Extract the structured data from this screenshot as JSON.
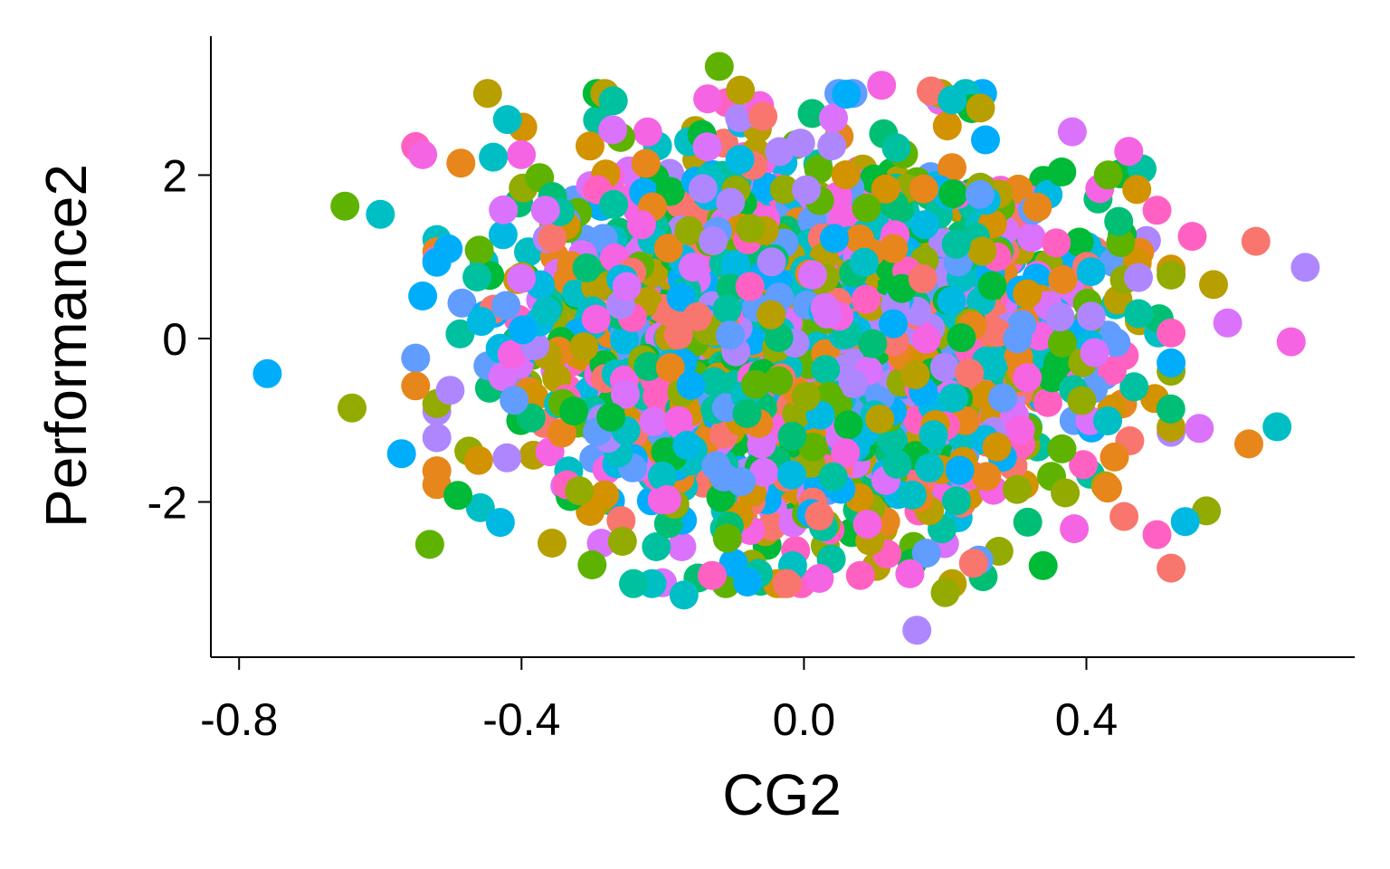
{
  "chart_data": {
    "type": "scatter",
    "title": "",
    "xlabel": "CG2",
    "ylabel": "Performance2",
    "xlim": [
      -0.84,
      0.78
    ],
    "ylim": [
      -3.9,
      3.7
    ],
    "xticks": [
      -0.8,
      -0.4,
      0.0,
      0.4
    ],
    "xtick_labels": [
      "-0.8",
      "-0.4",
      "0.0",
      "0.4"
    ],
    "yticks": [
      -2,
      0,
      2
    ],
    "ytick_labels": [
      "-2",
      "0",
      "2"
    ],
    "grid": false,
    "legend": "none",
    "palette": [
      "#F8766D",
      "#E7861B",
      "#D39200",
      "#B79F00",
      "#93AA00",
      "#5EB300",
      "#00BA38",
      "#00BF74",
      "#00C19F",
      "#00BFC4",
      "#00B9E3",
      "#00ADFA",
      "#619CFF",
      "#AE87FF",
      "#DB72FB",
      "#F564E3",
      "#FF61C3"
    ],
    "dense_cloud": {
      "count": 2600,
      "x_center": 0.0,
      "x_sd": 0.19,
      "y_center": 0.0,
      "y_sd": 1.05,
      "x_range": [
        -0.52,
        0.52
      ],
      "y_range": [
        -3.0,
        3.0
      ]
    },
    "points": [
      {
        "x": -0.76,
        "y": -0.43,
        "color": "#00ADFA"
      },
      {
        "x": -0.64,
        "y": -0.85,
        "color": "#93AA00"
      },
      {
        "x": -0.65,
        "y": 1.62,
        "color": "#5EB300"
      },
      {
        "x": -0.6,
        "y": 1.52,
        "color": "#00BFC4"
      },
      {
        "x": -0.55,
        "y": 2.35,
        "color": "#FF61C3"
      },
      {
        "x": -0.54,
        "y": 2.25,
        "color": "#F564E3"
      },
      {
        "x": -0.57,
        "y": -1.41,
        "color": "#00ADFA"
      },
      {
        "x": -0.53,
        "y": -2.52,
        "color": "#5EB300"
      },
      {
        "x": -0.54,
        "y": 0.52,
        "color": "#00ADFA"
      },
      {
        "x": -0.55,
        "y": -0.24,
        "color": "#619CFF"
      },
      {
        "x": -0.55,
        "y": -0.58,
        "color": "#E7861B"
      },
      {
        "x": -0.44,
        "y": 2.22,
        "color": "#00BFC4"
      },
      {
        "x": -0.42,
        "y": 2.68,
        "color": "#00BFC4"
      },
      {
        "x": -0.43,
        "y": -2.25,
        "color": "#00B9E3"
      },
      {
        "x": -0.49,
        "y": -1.92,
        "color": "#00BA38"
      },
      {
        "x": -0.3,
        "y": -2.77,
        "color": "#5EB300"
      },
      {
        "x": -0.27,
        "y": 2.91,
        "color": "#00C19F"
      },
      {
        "x": -0.12,
        "y": 3.33,
        "color": "#5EB300"
      },
      {
        "x": -0.09,
        "y": 3.04,
        "color": "#B79F00"
      },
      {
        "x": 0.06,
        "y": 2.99,
        "color": "#00ADFA"
      },
      {
        "x": 0.11,
        "y": 3.1,
        "color": "#F564E3"
      },
      {
        "x": 0.18,
        "y": 3.03,
        "color": "#F8766D"
      },
      {
        "x": 0.21,
        "y": 2.92,
        "color": "#00BFC4"
      },
      {
        "x": 0.25,
        "y": 2.82,
        "color": "#B79F00"
      },
      {
        "x": 0.38,
        "y": 2.53,
        "color": "#DB72FB"
      },
      {
        "x": 0.46,
        "y": 2.29,
        "color": "#F564E3"
      },
      {
        "x": 0.5,
        "y": 1.57,
        "color": "#FF61C3"
      },
      {
        "x": 0.55,
        "y": 1.25,
        "color": "#FF61C3"
      },
      {
        "x": 0.64,
        "y": 1.19,
        "color": "#F8766D"
      },
      {
        "x": 0.71,
        "y": 0.87,
        "color": "#AE87FF"
      },
      {
        "x": 0.58,
        "y": 0.66,
        "color": "#B79F00"
      },
      {
        "x": 0.6,
        "y": 0.19,
        "color": "#DB72FB"
      },
      {
        "x": 0.69,
        "y": -0.04,
        "color": "#F564E3"
      },
      {
        "x": 0.56,
        "y": -1.1,
        "color": "#DB72FB"
      },
      {
        "x": 0.63,
        "y": -1.29,
        "color": "#E7861B"
      },
      {
        "x": 0.67,
        "y": -1.08,
        "color": "#00BFC4"
      },
      {
        "x": 0.57,
        "y": -2.11,
        "color": "#93AA00"
      },
      {
        "x": 0.54,
        "y": -2.24,
        "color": "#00B9E3"
      },
      {
        "x": 0.5,
        "y": -2.4,
        "color": "#FF61C3"
      },
      {
        "x": 0.52,
        "y": -2.81,
        "color": "#F8766D"
      },
      {
        "x": 0.43,
        "y": -1.83,
        "color": "#E7861B"
      },
      {
        "x": -0.17,
        "y": -3.14,
        "color": "#00BFC4"
      },
      {
        "x": -0.08,
        "y": -2.98,
        "color": "#00ADFA"
      },
      {
        "x": -0.13,
        "y": -2.9,
        "color": "#FF61C3"
      },
      {
        "x": 0.16,
        "y": -3.57,
        "color": "#AE87FF"
      },
      {
        "x": 0.2,
        "y": -3.11,
        "color": "#93AA00"
      },
      {
        "x": 0.08,
        "y": -2.9,
        "color": "#FF61C3"
      },
      {
        "x": 0.15,
        "y": -2.88,
        "color": "#F564E3"
      },
      {
        "x": 0.24,
        "y": -2.75,
        "color": "#F8766D"
      }
    ]
  }
}
